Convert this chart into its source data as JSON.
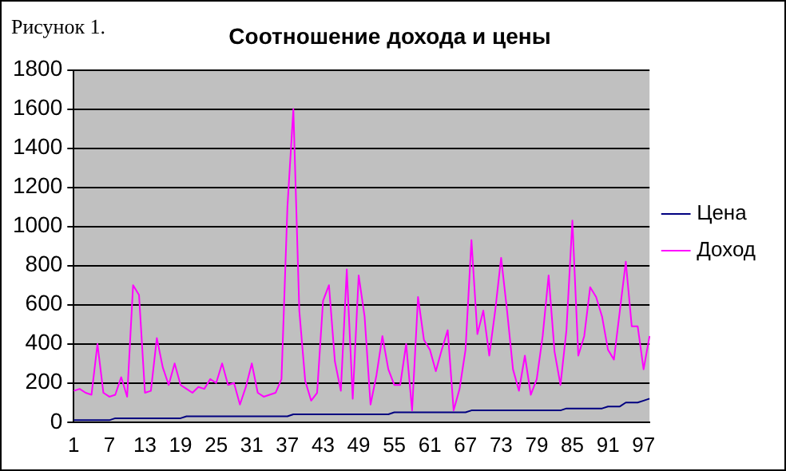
{
  "chart_data": {
    "type": "line",
    "title": "Соотношение дохода и цены",
    "annotations": [
      "Рисунок 1."
    ],
    "categories": [
      "1",
      null,
      null,
      null,
      null,
      null,
      "7",
      null,
      null,
      null,
      null,
      null,
      "13",
      null,
      null,
      null,
      null,
      null,
      "19",
      null,
      null,
      null,
      null,
      null,
      "25",
      null,
      null,
      null,
      null,
      null,
      "31",
      null,
      null,
      null,
      null,
      null,
      "37",
      null,
      null,
      null,
      null,
      null,
      "43",
      null,
      null,
      null,
      null,
      null,
      "49",
      null,
      null,
      null,
      null,
      null,
      "55",
      null,
      null,
      null,
      null,
      null,
      "61",
      null,
      null,
      null,
      null,
      null,
      "67",
      null,
      null,
      null,
      null,
      null,
      "73",
      null,
      null,
      null,
      null,
      null,
      "79",
      null,
      null,
      null,
      null,
      null,
      "85",
      null,
      null,
      null,
      null,
      null,
      "91",
      null,
      null,
      null,
      null,
      null,
      "97",
      null
    ],
    "series": [
      {
        "name": "Цена",
        "color": "#000080",
        "values": [
          10,
          10,
          10,
          10,
          10,
          10,
          10,
          20,
          20,
          20,
          20,
          20,
          20,
          20,
          20,
          20,
          20,
          20,
          20,
          30,
          30,
          30,
          30,
          30,
          30,
          30,
          30,
          30,
          30,
          30,
          30,
          30,
          30,
          30,
          30,
          30,
          30,
          40,
          40,
          40,
          40,
          40,
          40,
          40,
          40,
          40,
          40,
          40,
          40,
          40,
          40,
          40,
          40,
          40,
          50,
          50,
          50,
          50,
          50,
          50,
          50,
          50,
          50,
          50,
          50,
          50,
          50,
          60,
          60,
          60,
          60,
          60,
          60,
          60,
          60,
          60,
          60,
          60,
          60,
          60,
          60,
          60,
          60,
          70,
          70,
          70,
          70,
          70,
          70,
          70,
          80,
          80,
          80,
          100,
          100,
          100,
          110,
          120
        ]
      },
      {
        "name": "Доход",
        "color": "#ff00ff",
        "values": [
          160,
          170,
          150,
          140,
          400,
          150,
          130,
          140,
          230,
          130,
          700,
          650,
          150,
          160,
          430,
          280,
          190,
          300,
          190,
          170,
          150,
          180,
          170,
          220,
          200,
          300,
          190,
          200,
          90,
          180,
          300,
          150,
          130,
          140,
          150,
          220,
          1100,
          1600,
          570,
          210,
          110,
          150,
          620,
          700,
          310,
          160,
          780,
          120,
          750,
          540,
          90,
          240,
          440,
          270,
          190,
          190,
          400,
          60,
          640,
          420,
          370,
          260,
          370,
          470,
          60,
          170,
          370,
          930,
          450,
          570,
          340,
          570,
          840,
          570,
          270,
          160,
          340,
          140,
          220,
          440,
          750,
          360,
          190,
          470,
          1030,
          340,
          440,
          690,
          640,
          540,
          370,
          320,
          570,
          820,
          490,
          490,
          270,
          440
        ]
      }
    ],
    "ylim": [
      0,
      1800
    ],
    "yticks": [
      0,
      200,
      400,
      600,
      800,
      1000,
      1200,
      1400,
      1600,
      1800
    ],
    "grid": "y",
    "legend": "right",
    "marker": "none",
    "line_style": "solid"
  }
}
